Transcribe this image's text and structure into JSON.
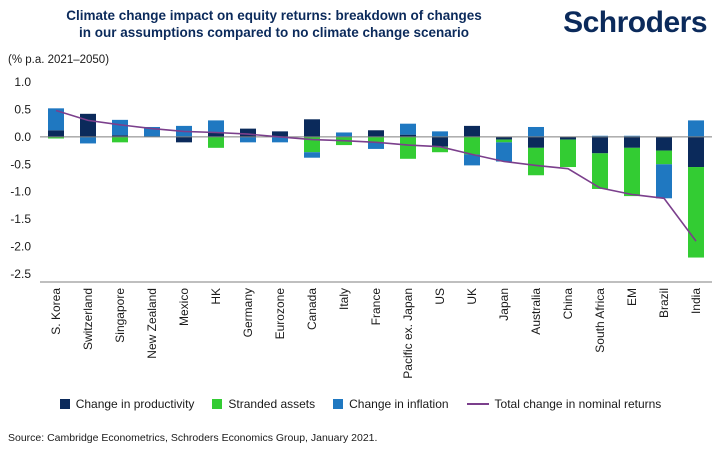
{
  "header": {
    "title_line1": "Climate change impact on equity returns: breakdown of changes",
    "title_line2": "in our assumptions compared to no climate change scenario",
    "brand": "Schroders",
    "unit": "(% p.a. 2021–2050)"
  },
  "source": "Source: Cambridge Econometrics, Schroders Economics Group, January 2021.",
  "colors": {
    "productivity": "#0b2a5b",
    "stranded": "#33cc33",
    "inflation": "#1f78c1",
    "total": "#7b3f8c"
  },
  "chart_data": {
    "type": "bar",
    "stacked": true,
    "categories": [
      "S. Korea",
      "Switzerland",
      "Singapore",
      "New Zealand",
      "Mexico",
      "HK",
      "Germany",
      "Eurozone",
      "Canada",
      "Italy",
      "France",
      "Pacific ex. Japan",
      "US",
      "UK",
      "Japan",
      "Australia",
      "China",
      "South Africa",
      "EM",
      "Brazil",
      "India"
    ],
    "series": [
      {
        "name": "Change in productivity",
        "type": "bar",
        "values": [
          0.12,
          0.42,
          0.03,
          0.0,
          -0.1,
          0.08,
          0.15,
          0.1,
          0.32,
          0.0,
          0.12,
          0.04,
          -0.18,
          0.2,
          -0.05,
          -0.2,
          -0.05,
          -0.3,
          -0.2,
          -0.25,
          -0.55
        ]
      },
      {
        "name": "Stranded assets",
        "type": "bar",
        "values": [
          -0.03,
          0.0,
          -0.1,
          0.0,
          0.0,
          -0.2,
          0.0,
          0.0,
          -0.28,
          -0.15,
          -0.1,
          -0.4,
          -0.1,
          -0.32,
          -0.05,
          -0.5,
          -0.5,
          -0.65,
          -0.88,
          -0.25,
          -1.65
        ]
      },
      {
        "name": "Change in inflation",
        "type": "bar",
        "values": [
          0.4,
          -0.12,
          0.28,
          0.18,
          0.2,
          0.22,
          -0.1,
          -0.1,
          -0.1,
          0.08,
          -0.12,
          0.2,
          0.1,
          -0.2,
          -0.35,
          0.18,
          0.0,
          0.02,
          0.02,
          -0.62,
          0.3
        ]
      },
      {
        "name": "Total change in nominal returns",
        "type": "line",
        "values": [
          0.48,
          0.3,
          0.22,
          0.15,
          0.1,
          0.08,
          0.05,
          0.0,
          -0.05,
          -0.07,
          -0.1,
          -0.15,
          -0.18,
          -0.32,
          -0.45,
          -0.52,
          -0.58,
          -0.93,
          -1.05,
          -1.12,
          -1.9
        ]
      }
    ],
    "ylim": [
      -2.5,
      1.0
    ],
    "yticks": [
      "1.0",
      "0.5",
      "0.0",
      "-0.5",
      "-1.0",
      "-1.5",
      "-2.0",
      "-2.5"
    ],
    "ytick_values": [
      1.0,
      0.5,
      0.0,
      -0.5,
      -1.0,
      -1.5,
      -2.0,
      -2.5
    ],
    "legend_position": "bottom",
    "grid": false
  }
}
